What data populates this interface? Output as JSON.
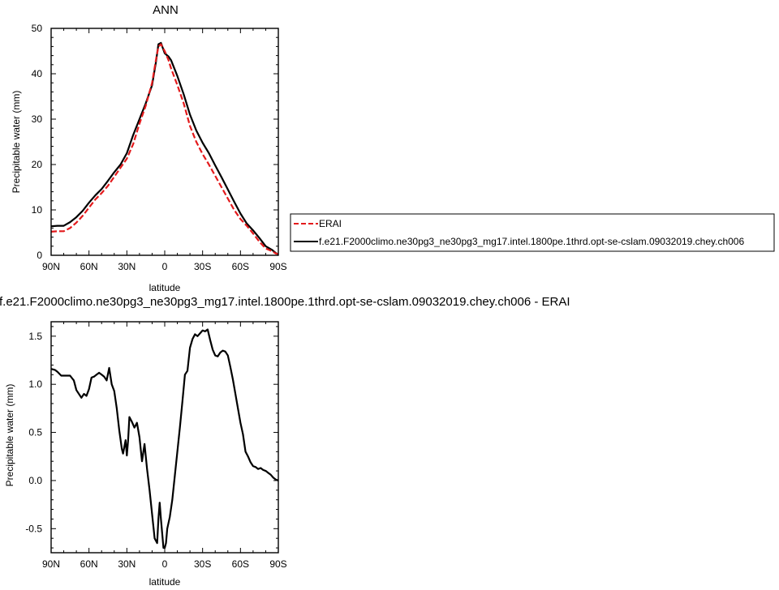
{
  "chart_data": [
    {
      "type": "line",
      "title": "ANN",
      "xlabel": "latitude",
      "ylabel": "Precipitable water (mm)",
      "xlim": [
        90,
        -90
      ],
      "ylim": [
        0,
        50
      ],
      "x_ticks": [
        90,
        60,
        30,
        0,
        -30,
        -60,
        -90
      ],
      "x_tick_labels": [
        "90N",
        "60N",
        "30N",
        "0",
        "30S",
        "60S",
        "90S"
      ],
      "y_ticks": [
        0,
        10,
        20,
        30,
        40,
        50
      ],
      "y_tick_labels": [
        "0",
        "10",
        "20",
        "30",
        "40",
        "50"
      ],
      "legend": "right",
      "series": [
        {
          "name": "ERAI",
          "color": "#e31a1c",
          "dash": "dashed",
          "x": [
            90,
            85,
            80,
            75,
            70,
            65,
            60,
            55,
            50,
            45,
            40,
            35,
            30,
            25,
            20,
            15,
            10,
            7,
            5,
            3,
            0,
            -3,
            -5,
            -10,
            -15,
            -20,
            -25,
            -30,
            -35,
            -40,
            -45,
            -50,
            -55,
            -60,
            -65,
            -70,
            -75,
            -80,
            -85,
            -88,
            -90
          ],
          "y": [
            5.2,
            5.3,
            5.3,
            6.0,
            7.2,
            8.7,
            10.5,
            12.3,
            13.7,
            15.3,
            17.3,
            19.3,
            21.3,
            24.5,
            29.0,
            33.0,
            38.0,
            43.0,
            46.0,
            46.5,
            45.0,
            43.0,
            41.2,
            37.5,
            33.5,
            28.5,
            25.0,
            22.3,
            20.0,
            17.5,
            15.0,
            12.5,
            10.0,
            8.0,
            6.5,
            4.8,
            3.0,
            1.5,
            0.9,
            0.4,
            0.3
          ]
        },
        {
          "name": "f.e21.F2000climo.ne30pg3_ne30pg3_mg17.intel.1800pe.1thrd.opt-se-cslam.09032019.chey.ch006",
          "color": "#000000",
          "dash": "solid",
          "x": [
            90,
            85,
            80,
            75,
            70,
            65,
            60,
            55,
            50,
            45,
            40,
            35,
            30,
            25,
            20,
            15,
            10,
            7,
            5,
            3,
            0,
            -3,
            -5,
            -10,
            -15,
            -20,
            -25,
            -30,
            -35,
            -40,
            -45,
            -50,
            -55,
            -60,
            -65,
            -70,
            -75,
            -80,
            -85,
            -88,
            -90
          ],
          "y": [
            6.4,
            6.5,
            6.5,
            7.3,
            8.4,
            9.8,
            11.6,
            13.2,
            14.6,
            16.4,
            18.3,
            20.0,
            22.5,
            26.5,
            30.0,
            33.5,
            37.5,
            42.5,
            46.5,
            46.8,
            44.5,
            43.8,
            43.0,
            39.5,
            35.5,
            31.0,
            27.5,
            24.8,
            22.5,
            19.8,
            17.2,
            14.5,
            11.8,
            9.2,
            7.0,
            5.5,
            3.8,
            2.0,
            1.2,
            0.5,
            0.2
          ]
        }
      ]
    },
    {
      "type": "line",
      "title": "f.e21.F2000climo.ne30pg3_ne30pg3_mg17.intel.1800pe.1thrd.opt-se-cslam.09032019.chey.ch006 - ERAI",
      "xlabel": "latitude",
      "ylabel": "Precipitable water (mm)",
      "xlim": [
        90,
        -90
      ],
      "ylim": [
        -0.75,
        1.65
      ],
      "x_ticks": [
        90,
        60,
        30,
        0,
        -30,
        -60,
        -90
      ],
      "x_tick_labels": [
        "90N",
        "60N",
        "30N",
        "0",
        "30S",
        "60S",
        "90S"
      ],
      "y_ticks": [
        -0.5,
        0,
        0.5,
        1.0,
        1.5
      ],
      "y_tick_labels": [
        "-0.5",
        "0.0",
        "0.5",
        "1.0",
        "1.5"
      ],
      "series": [
        {
          "name": "",
          "color": "#000000",
          "dash": "solid",
          "x": [
            90,
            87,
            85,
            82,
            78,
            75,
            72,
            70,
            68,
            66,
            64,
            62,
            60,
            58,
            56,
            54,
            52,
            50,
            48,
            46,
            44,
            42,
            40,
            38,
            36,
            34,
            33,
            32,
            31,
            30,
            29,
            28,
            26,
            24,
            22,
            20,
            18,
            16,
            14,
            12,
            10,
            8,
            6,
            5,
            4,
            3,
            2,
            1,
            0,
            -1,
            -2,
            -4,
            -6,
            -8,
            -10,
            -12,
            -14,
            -16,
            -18,
            -20,
            -22,
            -24,
            -26,
            -28,
            -30,
            -32,
            -34,
            -36,
            -38,
            -40,
            -42,
            -44,
            -46,
            -48,
            -50,
            -52,
            -54,
            -56,
            -58,
            -60,
            -62,
            -64,
            -66,
            -68,
            -70,
            -72,
            -74,
            -76,
            -78,
            -80,
            -82,
            -84,
            -86,
            -88,
            -90
          ],
          "y": [
            1.16,
            1.15,
            1.13,
            1.09,
            1.09,
            1.09,
            1.04,
            0.94,
            0.9,
            0.86,
            0.9,
            0.88,
            0.95,
            1.07,
            1.08,
            1.1,
            1.12,
            1.1,
            1.08,
            1.04,
            1.17,
            1.0,
            0.93,
            0.75,
            0.52,
            0.33,
            0.28,
            0.35,
            0.42,
            0.26,
            0.42,
            0.66,
            0.61,
            0.55,
            0.6,
            0.45,
            0.2,
            0.38,
            0.12,
            -0.1,
            -0.35,
            -0.6,
            -0.65,
            -0.4,
            -0.23,
            -0.4,
            -0.55,
            -0.7,
            -0.7,
            -0.65,
            -0.5,
            -0.38,
            -0.2,
            0.05,
            0.3,
            0.55,
            0.82,
            1.1,
            1.14,
            1.38,
            1.47,
            1.52,
            1.5,
            1.53,
            1.56,
            1.55,
            1.57,
            1.46,
            1.36,
            1.3,
            1.29,
            1.33,
            1.35,
            1.34,
            1.3,
            1.18,
            1.05,
            0.9,
            0.75,
            0.6,
            0.48,
            0.3,
            0.25,
            0.19,
            0.15,
            0.14,
            0.12,
            0.13,
            0.11,
            0.1,
            0.08,
            0.06,
            0.03,
            0.01,
            0.0
          ]
        }
      ]
    }
  ]
}
